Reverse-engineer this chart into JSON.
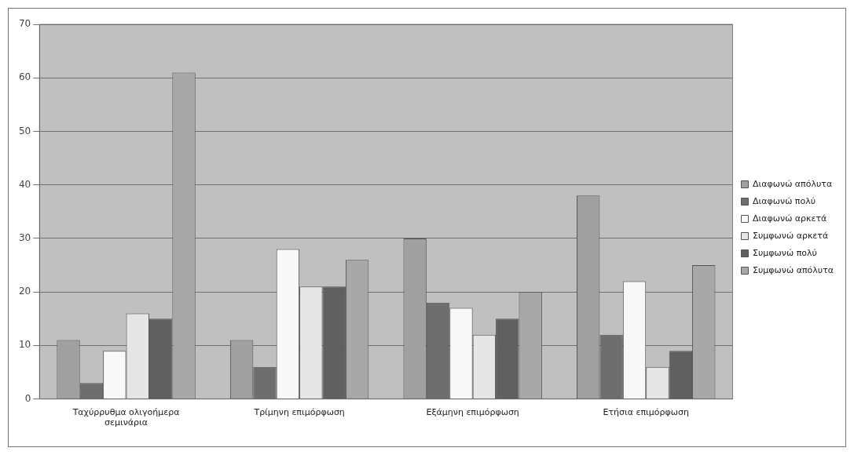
{
  "chart_data": {
    "type": "bar",
    "categories": [
      "Ταχύρρυθμα ολιγοήμερα σεμινάρια",
      "Τρίμηνη επιμόρφωση",
      "Εξάμηνη επιμόρφωση",
      "Ετήσια επιμόρφωση"
    ],
    "series": [
      {
        "name": "Διαφωνώ απόλυτα",
        "color": "#a0a0a0",
        "values": [
          11,
          11,
          30,
          38
        ]
      },
      {
        "name": "Διαφωνώ πολύ",
        "color": "#6e6e6e",
        "values": [
          3,
          6,
          18,
          12
        ]
      },
      {
        "name": "Διαφωνώ αρκετά",
        "color": "#f8f8f8",
        "values": [
          9,
          28,
          17,
          22
        ]
      },
      {
        "name": "Συμφωνώ αρκετά",
        "color": "#e6e6e6",
        "values": [
          16,
          21,
          12,
          6
        ]
      },
      {
        "name": "Συμφωνώ πολύ",
        "color": "#606060",
        "values": [
          15,
          21,
          15,
          9
        ]
      },
      {
        "name": "Συμφωνώ απόλυτα",
        "color": "#a8a8a8",
        "values": [
          61,
          26,
          20,
          25
        ]
      }
    ],
    "ylim": [
      0,
      70
    ],
    "yticks": [
      0,
      10,
      20,
      30,
      40,
      50,
      60,
      70
    ],
    "grid": "y",
    "legend": "right"
  }
}
